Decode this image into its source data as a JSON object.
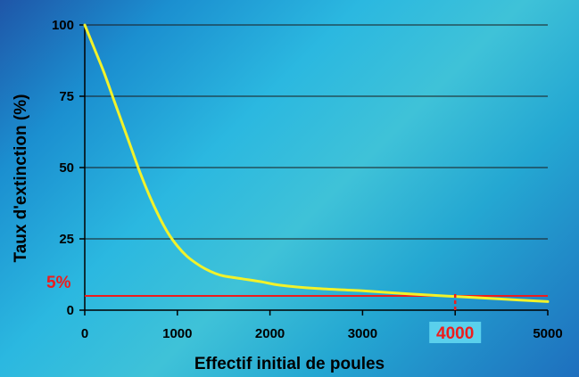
{
  "chart_data": {
    "type": "line",
    "title": "",
    "xlabel": "Effectif initial de poules",
    "ylabel": "Taux d'extinction (%)",
    "xlim": [
      0,
      5000
    ],
    "ylim": [
      0,
      100
    ],
    "xticks": [
      "0",
      "1000",
      "2000",
      "3000",
      "4000",
      "5000"
    ],
    "yticks": [
      "0",
      "25",
      "50",
      "75",
      "100"
    ],
    "grid": "horizontal",
    "legend": "none",
    "series": [
      {
        "color": "#f2f22a",
        "x": [
          0,
          100,
          200,
          300,
          400,
          500,
          600,
          700,
          800,
          900,
          1000,
          1100,
          1200,
          1300,
          1400,
          1500,
          1700,
          1900,
          2100,
          2500,
          3000,
          3500,
          4000,
          4500,
          5000
        ],
        "y": [
          100,
          92,
          84,
          75,
          66,
          57,
          48,
          40,
          33,
          27,
          22.5,
          19,
          16.5,
          14.5,
          13,
          12,
          11,
          10,
          8.8,
          7.6,
          6.8,
          5.7,
          4.8,
          3.9,
          3
        ]
      }
    ],
    "reference_line": {
      "y": 5,
      "label": "5%",
      "color": "#ee1c1c"
    },
    "marker": {
      "x": 4000,
      "label": "4000",
      "color": "#ee1c1c",
      "label_bg": "#5ad0ec"
    }
  }
}
